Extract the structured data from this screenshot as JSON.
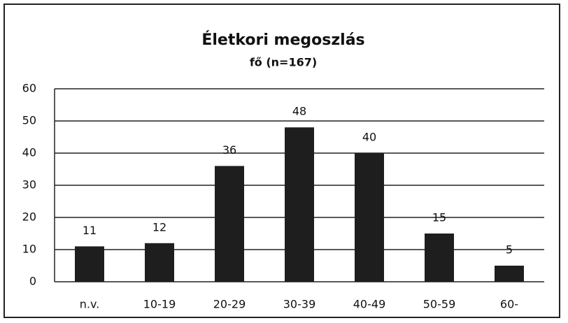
{
  "chart_data": {
    "type": "bar",
    "title": "Életkori megoszlás",
    "subtitle": "fő (n=167)",
    "categories": [
      "n.v.",
      "10-19",
      "20-29",
      "30-39",
      "40-49",
      "50-59",
      "60-"
    ],
    "values": [
      11,
      12,
      36,
      48,
      40,
      15,
      5
    ],
    "color": "#1e1e1e",
    "ylim": [
      0,
      60
    ],
    "yticks": [
      0,
      10,
      20,
      30,
      40,
      50,
      60
    ],
    "grid": true
  }
}
